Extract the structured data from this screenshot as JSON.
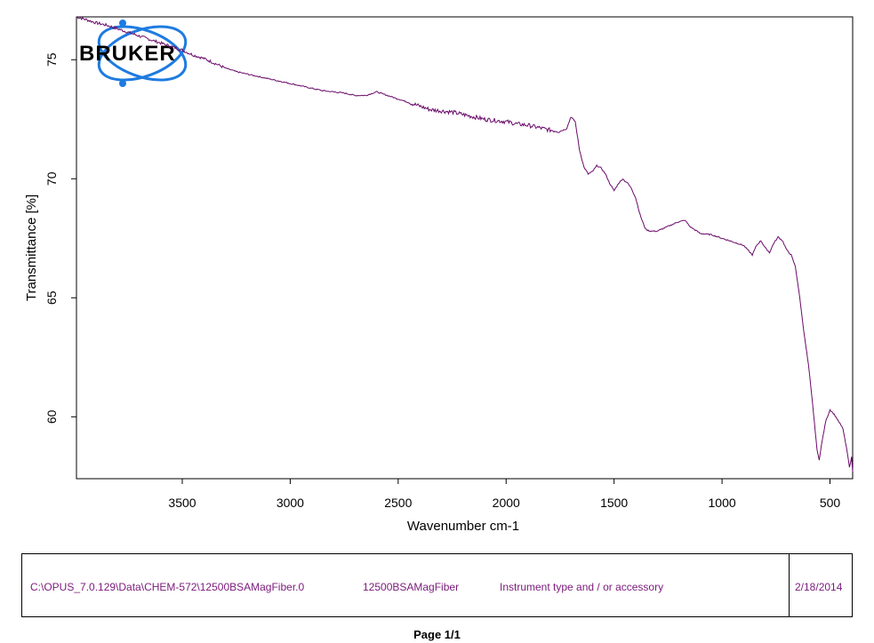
{
  "chart_data": {
    "type": "line",
    "title": "",
    "xlabel": "Wavenumber cm-1",
    "ylabel": "Transmittance [%]",
    "xlim": [
      3990,
      395
    ],
    "ylim": [
      57.4,
      76.8
    ],
    "x_ticks": [
      3500,
      3000,
      2500,
      2000,
      1500,
      1000,
      500
    ],
    "y_ticks": [
      60,
      65,
      70,
      75
    ],
    "grid": false,
    "color": "#6a0a6a",
    "series": [
      {
        "x": [
          3990,
          3950,
          3900,
          3850,
          3800,
          3750,
          3700,
          3650,
          3600,
          3550,
          3500,
          3450,
          3400,
          3350,
          3300,
          3250,
          3200,
          3150,
          3100,
          3050,
          3000,
          2950,
          2900,
          2850,
          2800,
          2750,
          2700,
          2650,
          2600,
          2550,
          2500,
          2450,
          2400,
          2350,
          2300,
          2250,
          2200,
          2150,
          2100,
          2050,
          2000,
          1950,
          1900,
          1850,
          1800,
          1750,
          1720,
          1700,
          1680,
          1660,
          1640,
          1620,
          1600,
          1580,
          1560,
          1540,
          1520,
          1500,
          1480,
          1460,
          1450,
          1440,
          1420,
          1400,
          1380,
          1360,
          1350,
          1330,
          1300,
          1250,
          1200,
          1170,
          1150,
          1100,
          1050,
          1000,
          950,
          900,
          880,
          860,
          840,
          820,
          800,
          780,
          760,
          740,
          720,
          700,
          680,
          660,
          640,
          620,
          600,
          580,
          560,
          550,
          540,
          520,
          500,
          480,
          460,
          440,
          420,
          410,
          400,
          395
        ],
        "y": [
          76.8,
          76.7,
          76.55,
          76.45,
          76.3,
          76.15,
          76.0,
          75.85,
          75.7,
          75.55,
          75.4,
          75.2,
          75.05,
          74.85,
          74.65,
          74.5,
          74.4,
          74.3,
          74.2,
          74.1,
          74.0,
          73.9,
          73.8,
          73.7,
          73.65,
          73.6,
          73.5,
          73.5,
          73.65,
          73.5,
          73.35,
          73.2,
          73.05,
          72.9,
          72.85,
          72.8,
          72.7,
          72.6,
          72.5,
          72.45,
          72.4,
          72.3,
          72.25,
          72.15,
          72.05,
          72.0,
          72.1,
          72.6,
          72.4,
          71.2,
          70.5,
          70.2,
          70.3,
          70.55,
          70.45,
          70.2,
          69.8,
          69.5,
          69.8,
          70.0,
          69.9,
          69.85,
          69.6,
          69.2,
          68.5,
          68.0,
          67.85,
          67.8,
          67.8,
          68.0,
          68.2,
          68.25,
          68.0,
          67.7,
          67.65,
          67.5,
          67.35,
          67.2,
          67.0,
          66.8,
          67.2,
          67.4,
          67.1,
          66.9,
          67.3,
          67.55,
          67.4,
          67.0,
          66.8,
          66.3,
          65.0,
          63.5,
          62.2,
          60.5,
          58.6,
          58.2,
          58.8,
          59.8,
          60.3,
          60.1,
          59.8,
          59.5,
          58.5,
          57.9,
          58.3,
          57.7
        ]
      }
    ]
  },
  "footer": {
    "path": "C:\\OPUS_7.0.129\\Data\\CHEM-572\\12500BSAMagFiber.0",
    "sample": "12500BSAMagFiber",
    "instrument": "Instrument type and / or accessory",
    "date": "2/18/2014"
  },
  "page_label": "Page 1/1",
  "logo_text": "BRUKER"
}
